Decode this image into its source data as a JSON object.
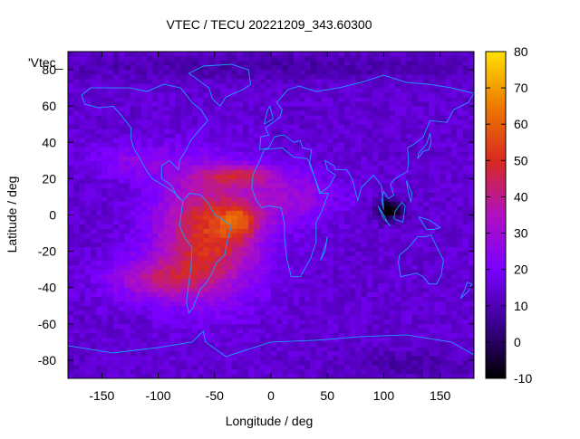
{
  "chart_data": {
    "type": "heatmap",
    "title": "VTEC / TECU 20221209_343.60300",
    "xlabel": "Longitude / deg",
    "ylabel": "Latitude / deg",
    "series_label": "'Vtec_",
    "xlim": [
      -180,
      180
    ],
    "ylim": [
      -90,
      90
    ],
    "xticks": [
      -150,
      -100,
      -50,
      0,
      50,
      100,
      150
    ],
    "yticks": [
      -80,
      -60,
      -40,
      -20,
      0,
      20,
      40,
      60,
      80
    ],
    "colorbar": {
      "range": [
        -10,
        80
      ],
      "ticks": [
        -10,
        0,
        10,
        20,
        30,
        40,
        50,
        60,
        70,
        80
      ],
      "palette": [
        "#000000",
        "#3a0090",
        "#7a00ff",
        "#b010c0",
        "#d82a20",
        "#ee7a00",
        "#ffe000"
      ]
    },
    "background_level": 14,
    "regions": [
      {
        "name": "south-american-anomaly-core",
        "lon": -55,
        "lat": -10,
        "dlon": 45,
        "dlat": 32,
        "amp": 38
      },
      {
        "name": "south-american-anomaly-bright",
        "lon": -28,
        "lat": -3,
        "dlon": 18,
        "dlat": 9,
        "amp": 22
      },
      {
        "name": "north-equatorial-band",
        "lon": -30,
        "lat": 22,
        "dlon": 35,
        "dlat": 6,
        "amp": 22
      },
      {
        "name": "southern-extension",
        "lon": -100,
        "lat": -35,
        "dlon": 45,
        "dlat": 12,
        "amp": 20
      },
      {
        "name": "atlantic-extension",
        "lon": 20,
        "lat": 10,
        "dlon": 40,
        "dlat": 14,
        "amp": 14
      },
      {
        "name": "north-pacific-band",
        "lon": -120,
        "lat": 30,
        "dlon": 40,
        "dlat": 10,
        "amp": 10
      },
      {
        "name": "asian-depletion",
        "lon": 105,
        "lat": 3,
        "dlon": 12,
        "dlat": 6,
        "amp": -26
      },
      {
        "name": "arctic-low",
        "lon": 0,
        "lat": 82,
        "dlon": 200,
        "dlat": 7,
        "amp": -6
      },
      {
        "name": "antarctic-low",
        "lon": 120,
        "lat": -82,
        "dlon": 60,
        "dlat": 8,
        "amp": -6
      }
    ]
  }
}
